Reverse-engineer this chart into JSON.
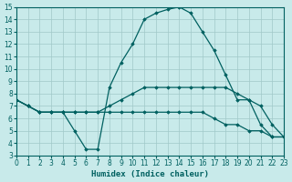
{
  "xlabel": "Humidex (Indice chaleur)",
  "bg_color": "#c8eaea",
  "grid_color": "#a0c8c8",
  "line_color": "#006060",
  "xlim": [
    0,
    23
  ],
  "ylim": [
    3,
    15
  ],
  "xticks": [
    0,
    1,
    2,
    3,
    4,
    5,
    6,
    7,
    8,
    9,
    10,
    11,
    12,
    13,
    14,
    15,
    16,
    17,
    18,
    19,
    20,
    21,
    22,
    23
  ],
  "yticks": [
    3,
    4,
    5,
    6,
    7,
    8,
    9,
    10,
    11,
    12,
    13,
    14,
    15
  ],
  "series": [
    {
      "x": [
        0,
        1,
        2,
        3,
        4,
        5,
        6,
        7,
        8,
        9,
        10,
        11,
        12,
        13,
        14,
        15,
        16,
        17,
        18,
        19,
        20,
        21,
        22,
        23
      ],
      "y": [
        7.5,
        7.0,
        6.5,
        6.5,
        6.5,
        5.0,
        3.5,
        3.5,
        8.5,
        10.5,
        12.0,
        14.0,
        14.5,
        14.8,
        15.0,
        14.5,
        13.0,
        11.5,
        9.5,
        7.5,
        7.5,
        5.5,
        4.5,
        4.5
      ]
    },
    {
      "x": [
        0,
        1,
        2,
        3,
        4,
        5,
        6,
        7,
        8,
        9,
        10,
        11,
        12,
        13,
        14,
        15,
        16,
        17,
        18,
        19,
        20,
        21,
        22,
        23
      ],
      "y": [
        7.5,
        7.0,
        6.5,
        6.5,
        6.5,
        6.5,
        6.5,
        6.5,
        7.0,
        7.5,
        8.0,
        8.5,
        8.5,
        8.5,
        8.5,
        8.5,
        8.5,
        8.5,
        8.5,
        8.0,
        7.5,
        7.0,
        5.5,
        4.5
      ]
    },
    {
      "x": [
        0,
        1,
        2,
        3,
        4,
        5,
        6,
        7,
        8,
        9,
        10,
        11,
        12,
        13,
        14,
        15,
        16,
        17,
        18,
        19,
        20,
        21,
        22,
        23
      ],
      "y": [
        7.5,
        7.0,
        6.5,
        6.5,
        6.5,
        6.5,
        6.5,
        6.5,
        6.5,
        6.5,
        6.5,
        6.5,
        6.5,
        6.5,
        6.5,
        6.5,
        6.5,
        6.0,
        5.5,
        5.5,
        5.0,
        5.0,
        4.5,
        4.5
      ]
    }
  ]
}
